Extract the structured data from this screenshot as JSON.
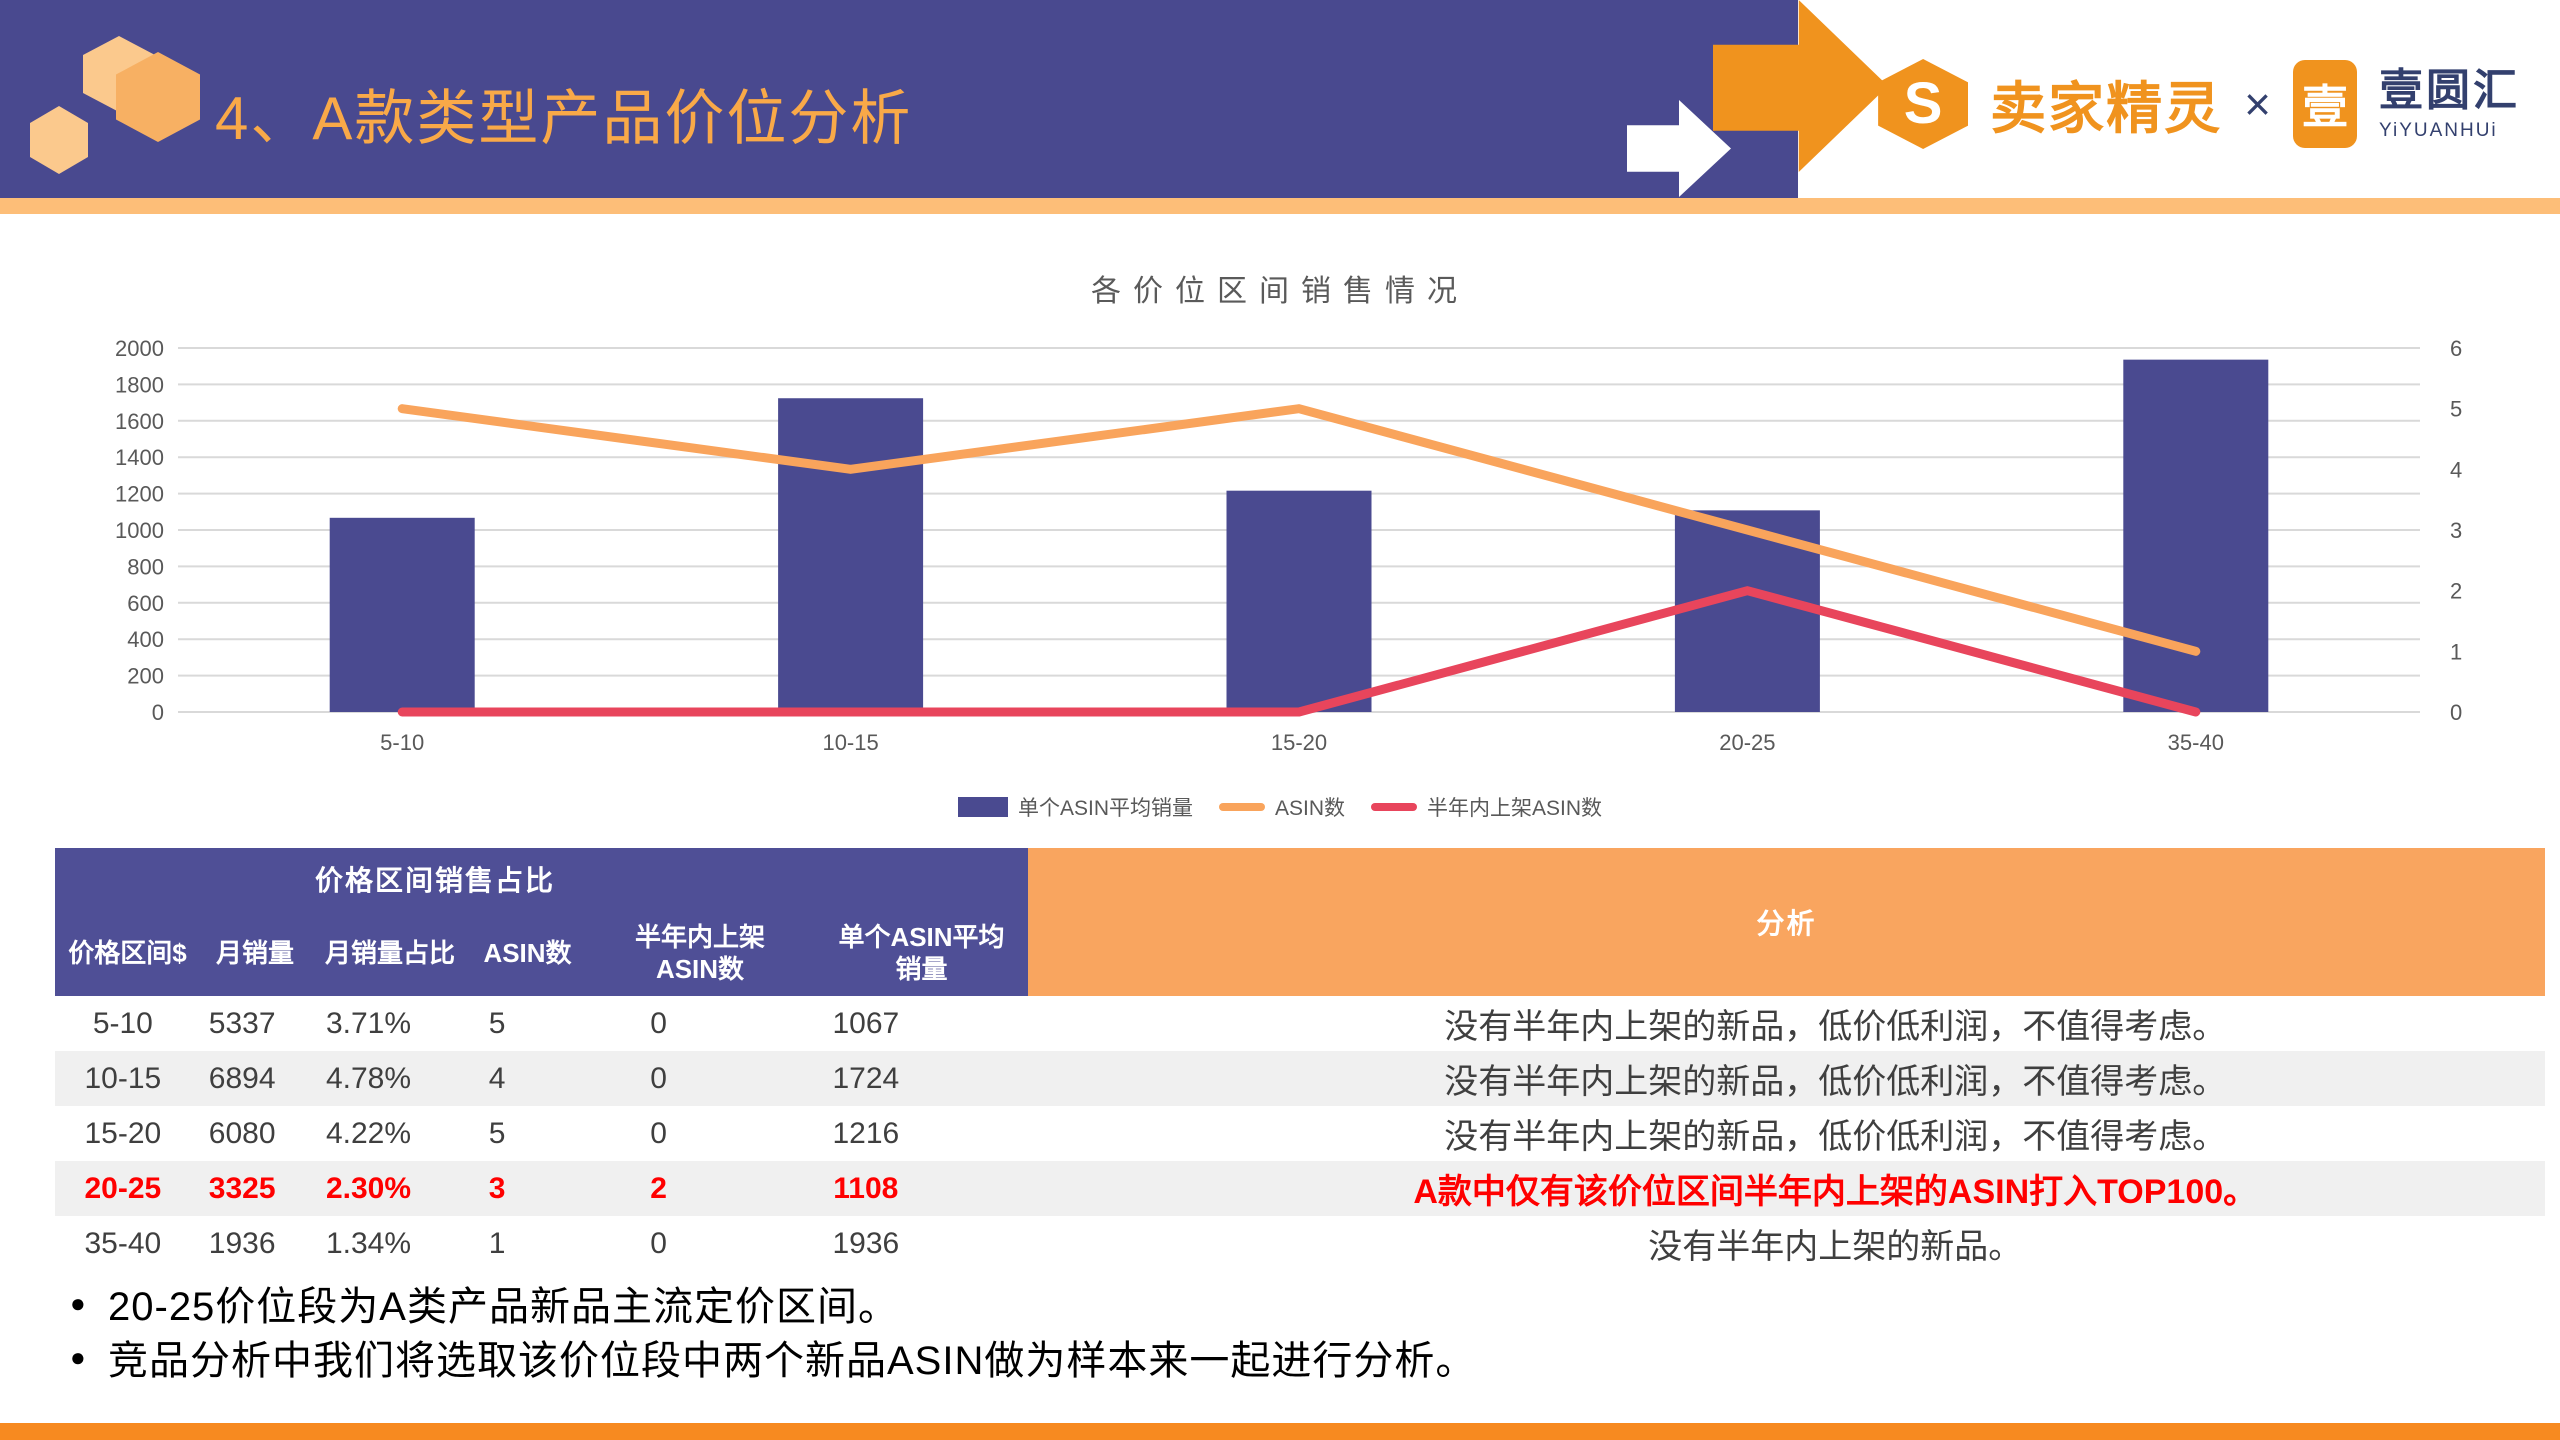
{
  "header": {
    "title": "4、A款类型产品价位分析",
    "brand_left_logo_letter": "S",
    "brand_left": "卖家精灵",
    "brand_separator": "×",
    "brand_right_logo_char": "壹",
    "brand_right": "壹圆汇",
    "brand_right_sub": "YiYUANHUi"
  },
  "colors": {
    "header_purple": "#49498F",
    "accent_orange": "#F0931E",
    "strip_orange": "#FDBE78",
    "table_header_purple": "#4F4F96",
    "analysis_orange": "#F9A55F",
    "row_alt_gray": "#F0F0F0",
    "highlight_red": "#FF0000",
    "bar_purple": "#4A4A90",
    "line_orange": "#F9A45C",
    "line_red": "#E8455C",
    "grid_gray": "#D9D9D9",
    "axis_text_gray": "#595959"
  },
  "chart_data": {
    "type": "combo",
    "title": "各价位区间销售情况",
    "categories": [
      "5-10",
      "10-15",
      "15-20",
      "20-25",
      "35-40"
    ],
    "series": [
      {
        "name": "单个ASIN平均销量",
        "type": "bar",
        "axis": "left",
        "values": [
          1067,
          1724,
          1216,
          1108,
          1936
        ],
        "color": "#4A4A90"
      },
      {
        "name": "ASIN数",
        "type": "line",
        "axis": "right",
        "values": [
          5,
          4,
          5,
          3,
          1
        ],
        "color": "#F9A45C"
      },
      {
        "name": "半年内上架ASIN数",
        "type": "line",
        "axis": "right",
        "values": [
          0,
          0,
          0,
          2,
          0
        ],
        "color": "#E8455C"
      }
    ],
    "left_axis": {
      "min": 0,
      "max": 2000,
      "step": 200
    },
    "right_axis": {
      "min": 0,
      "max": 6,
      "step": 1
    },
    "grid": true,
    "legend_position": "bottom"
  },
  "table": {
    "group_header": "价格区间销售占比",
    "columns": [
      {
        "l1": "价格区间$"
      },
      {
        "l1": "月销量"
      },
      {
        "l1": "月销量占比"
      },
      {
        "l1": "ASIN数"
      },
      {
        "l1": "半年内上架",
        "l2": "ASIN数"
      },
      {
        "l1": "单个ASIN平均",
        "l2": "销量"
      },
      {
        "l1": "分析"
      }
    ],
    "rows": [
      {
        "range": "5-10",
        "monthly_sales": "5337",
        "share": "3.71%",
        "asin_count": "5",
        "new_asin_count": "0",
        "avg_per_asin": "1067",
        "analysis": "没有半年内上架的新品，低价低利润，不值得考虑。",
        "highlight": false
      },
      {
        "range": "10-15",
        "monthly_sales": "6894",
        "share": "4.78%",
        "asin_count": "4",
        "new_asin_count": "0",
        "avg_per_asin": "1724",
        "analysis": "没有半年内上架的新品，低价低利润，不值得考虑。",
        "highlight": false
      },
      {
        "range": "15-20",
        "monthly_sales": "6080",
        "share": "4.22%",
        "asin_count": "5",
        "new_asin_count": "0",
        "avg_per_asin": "1216",
        "analysis": "没有半年内上架的新品，低价低利润，不值得考虑。",
        "highlight": false
      },
      {
        "range": "20-25",
        "monthly_sales": "3325",
        "share": "2.30%",
        "asin_count": "3",
        "new_asin_count": "2",
        "avg_per_asin": "1108",
        "analysis": "A款中仅有该价位区间半年内上架的ASIN打入TOP100。",
        "highlight": true
      },
      {
        "range": "35-40",
        "monthly_sales": "1936",
        "share": "1.34%",
        "asin_count": "1",
        "new_asin_count": "0",
        "avg_per_asin": "1936",
        "analysis": "没有半年内上架的新品。",
        "highlight": false
      }
    ]
  },
  "bullets": [
    "20-25价位段为A类产品新品主流定价区间。",
    "竞品分析中我们将选取该价位段中两个新品ASIN做为样本来一起进行分析。"
  ]
}
